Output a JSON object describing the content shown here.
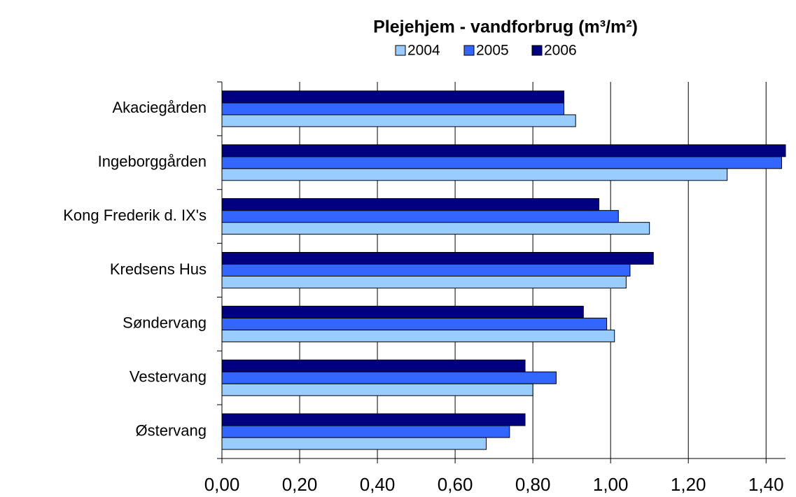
{
  "chart_data": {
    "type": "bar",
    "orientation": "horizontal",
    "title": "Plejehjem - vandforbrug (m³/m²)",
    "categories": [
      "Akaciegården",
      "Ingeborggården",
      "Kong Frederik d. IX's",
      "Kredsens Hus",
      "Søndervang",
      "Vestervang",
      "Østervang"
    ],
    "series": [
      {
        "name": "2004",
        "color": "#99ccff",
        "values": [
          0.91,
          1.3,
          1.1,
          1.04,
          1.01,
          0.8,
          0.68
        ]
      },
      {
        "name": "2005",
        "color": "#3366ff",
        "values": [
          0.88,
          1.44,
          1.02,
          1.05,
          0.99,
          0.86,
          0.74
        ]
      },
      {
        "name": "2006",
        "color": "#000080",
        "values": [
          0.88,
          1.45,
          0.97,
          1.11,
          0.93,
          0.78,
          0.78
        ]
      }
    ],
    "xlim": [
      0,
      1.45
    ],
    "xticks": [
      {
        "value": 0,
        "label": "0,00"
      },
      {
        "value": 0.2,
        "label": "0,20"
      },
      {
        "value": 0.4,
        "label": "0,40"
      },
      {
        "value": 0.6,
        "label": "0,60"
      },
      {
        "value": 0.8,
        "label": "0,80"
      },
      {
        "value": 1.0,
        "label": "1,00"
      },
      {
        "value": 1.2,
        "label": "1,20"
      },
      {
        "value": 1.4,
        "label": "1,40"
      }
    ],
    "grid": true,
    "legend": "top"
  }
}
